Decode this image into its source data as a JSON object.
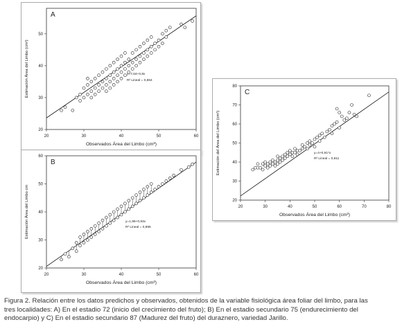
{
  "chart_data": [
    {
      "type": "scatter",
      "panel_label": "A",
      "xlabel": "Observados Área del Limbo (cm²)",
      "ylabel": "Estimación Área del Limbo (cm²)",
      "xlim": [
        20,
        60
      ],
      "ylim": [
        20,
        58
      ],
      "xticks": [
        20,
        30,
        40,
        50,
        60
      ],
      "yticks": [
        20,
        30,
        40,
        50
      ],
      "equation": "y=7,64+0,8x",
      "r2": "R² Lineal = 0,864",
      "fit": {
        "intercept": 7.64,
        "slope": 0.8
      },
      "points": [
        [
          24,
          26
        ],
        [
          25,
          27
        ],
        [
          27,
          26
        ],
        [
          28,
          30
        ],
        [
          29,
          29
        ],
        [
          29,
          31
        ],
        [
          30,
          30
        ],
        [
          30,
          33
        ],
        [
          31,
          31
        ],
        [
          31,
          34
        ],
        [
          31,
          36
        ],
        [
          32,
          30
        ],
        [
          32,
          32
        ],
        [
          32,
          35
        ],
        [
          33,
          31
        ],
        [
          33,
          33
        ],
        [
          33,
          36
        ],
        [
          34,
          32
        ],
        [
          34,
          34
        ],
        [
          34,
          37
        ],
        [
          35,
          33
        ],
        [
          35,
          35
        ],
        [
          35,
          38
        ],
        [
          36,
          32
        ],
        [
          36,
          34
        ],
        [
          36,
          36
        ],
        [
          36,
          39
        ],
        [
          37,
          33
        ],
        [
          37,
          35
        ],
        [
          37,
          37
        ],
        [
          37,
          40
        ],
        [
          38,
          34
        ],
        [
          38,
          36
        ],
        [
          38,
          38
        ],
        [
          38,
          41
        ],
        [
          39,
          35
        ],
        [
          39,
          37
        ],
        [
          39,
          39
        ],
        [
          39,
          42
        ],
        [
          40,
          36
        ],
        [
          40,
          38
        ],
        [
          40,
          40
        ],
        [
          40,
          43
        ],
        [
          41,
          37
        ],
        [
          41,
          39
        ],
        [
          41,
          41
        ],
        [
          41,
          44
        ],
        [
          42,
          38
        ],
        [
          42,
          40
        ],
        [
          42,
          42
        ],
        [
          43,
          39
        ],
        [
          43,
          41
        ],
        [
          43,
          44
        ],
        [
          44,
          40
        ],
        [
          44,
          42
        ],
        [
          44,
          45
        ],
        [
          45,
          41
        ],
        [
          45,
          43
        ],
        [
          45,
          46
        ],
        [
          46,
          42
        ],
        [
          46,
          44
        ],
        [
          46,
          47
        ],
        [
          47,
          43
        ],
        [
          47,
          45
        ],
        [
          47,
          48
        ],
        [
          48,
          44
        ],
        [
          48,
          46
        ],
        [
          48,
          49
        ],
        [
          49,
          45
        ],
        [
          49,
          47
        ],
        [
          50,
          46
        ],
        [
          50,
          48
        ],
        [
          51,
          47
        ],
        [
          51,
          50
        ],
        [
          52,
          49
        ],
        [
          52,
          51
        ],
        [
          53,
          52
        ],
        [
          56,
          53
        ],
        [
          57,
          52
        ],
        [
          59,
          54
        ]
      ]
    },
    {
      "type": "scatter",
      "panel_label": "B",
      "xlabel": "Observados Área del Limbo (cm²)",
      "ylabel": "Estimación Área del Limbo cm",
      "xlim": [
        20,
        60
      ],
      "ylim": [
        20,
        60
      ],
      "xticks": [
        20,
        30,
        40,
        50,
        60
      ],
      "yticks": [
        20,
        30,
        40,
        50,
        60
      ],
      "equation": "y=1,96+0,93x",
      "r2": "R² Lineal = 0,896",
      "fit": {
        "intercept": 1.96,
        "slope": 0.93
      },
      "points": [
        [
          24,
          23
        ],
        [
          25,
          25
        ],
        [
          26,
          24
        ],
        [
          27,
          27
        ],
        [
          28,
          26
        ],
        [
          28,
          29
        ],
        [
          29,
          28
        ],
        [
          29,
          31
        ],
        [
          30,
          29
        ],
        [
          30,
          32
        ],
        [
          31,
          30
        ],
        [
          31,
          33
        ],
        [
          32,
          31
        ],
        [
          32,
          34
        ],
        [
          33,
          32
        ],
        [
          33,
          35
        ],
        [
          34,
          33
        ],
        [
          34,
          36
        ],
        [
          35,
          34
        ],
        [
          35,
          37
        ],
        [
          36,
          35
        ],
        [
          36,
          38
        ],
        [
          37,
          36
        ],
        [
          37,
          39
        ],
        [
          38,
          37
        ],
        [
          38,
          40
        ],
        [
          39,
          38
        ],
        [
          39,
          41
        ],
        [
          40,
          39
        ],
        [
          40,
          42
        ],
        [
          41,
          40
        ],
        [
          41,
          43
        ],
        [
          42,
          41
        ],
        [
          42,
          44
        ],
        [
          43,
          42
        ],
        [
          43,
          45
        ],
        [
          44,
          43
        ],
        [
          44,
          46
        ],
        [
          45,
          44
        ],
        [
          45,
          47
        ],
        [
          46,
          45
        ],
        [
          46,
          48
        ],
        [
          47,
          46
        ],
        [
          47,
          49
        ],
        [
          48,
          47
        ],
        [
          48,
          50
        ],
        [
          49,
          48
        ],
        [
          50,
          49
        ],
        [
          51,
          50
        ],
        [
          52,
          51
        ],
        [
          53,
          52
        ],
        [
          54,
          53
        ],
        [
          56,
          55
        ],
        [
          58,
          56
        ],
        [
          59,
          57
        ]
      ]
    },
    {
      "type": "scatter",
      "panel_label": "C",
      "xlabel": "Observados Área del Limbo (cm²)",
      "ylabel": "Estimación del Área del Limbo (cm²)",
      "xlim": [
        20,
        80
      ],
      "ylim": [
        20,
        80
      ],
      "xticks": [
        20,
        30,
        40,
        50,
        60,
        70,
        80
      ],
      "yticks": [
        20,
        30,
        40,
        50,
        60,
        70,
        80
      ],
      "equation": "y=4+0,91*x",
      "r2": "R² Lineal = 0,911",
      "fit": {
        "intercept": 4,
        "slope": 0.91
      },
      "points": [
        [
          25,
          36
        ],
        [
          26,
          37
        ],
        [
          27,
          37
        ],
        [
          27,
          39
        ],
        [
          28,
          37
        ],
        [
          29,
          36
        ],
        [
          29,
          39
        ],
        [
          30,
          38
        ],
        [
          30,
          40
        ],
        [
          31,
          37
        ],
        [
          31,
          39
        ],
        [
          32,
          38
        ],
        [
          32,
          40
        ],
        [
          33,
          39
        ],
        [
          33,
          41
        ],
        [
          34,
          38
        ],
        [
          34,
          40
        ],
        [
          35,
          39
        ],
        [
          35,
          41
        ],
        [
          35,
          43
        ],
        [
          36,
          40
        ],
        [
          36,
          42
        ],
        [
          37,
          41
        ],
        [
          37,
          43
        ],
        [
          38,
          42
        ],
        [
          38,
          44
        ],
        [
          39,
          43
        ],
        [
          39,
          45
        ],
        [
          40,
          44
        ],
        [
          40,
          46
        ],
        [
          41,
          43
        ],
        [
          41,
          45
        ],
        [
          42,
          45
        ],
        [
          42,
          47
        ],
        [
          43,
          44
        ],
        [
          43,
          46
        ],
        [
          44,
          46
        ],
        [
          45,
          47
        ],
        [
          45,
          49
        ],
        [
          46,
          48
        ],
        [
          47,
          47
        ],
        [
          47,
          50
        ],
        [
          48,
          49
        ],
        [
          48,
          51
        ],
        [
          49,
          50
        ],
        [
          50,
          52
        ],
        [
          50,
          48
        ],
        [
          51,
          53
        ],
        [
          52,
          51
        ],
        [
          52,
          54
        ],
        [
          53,
          55
        ],
        [
          54,
          53
        ],
        [
          55,
          56
        ],
        [
          56,
          57
        ],
        [
          57,
          55
        ],
        [
          57,
          59
        ],
        [
          58,
          60
        ],
        [
          59,
          61
        ],
        [
          59,
          68
        ],
        [
          60,
          58
        ],
        [
          60,
          66
        ],
        [
          61,
          64
        ],
        [
          62,
          62
        ],
        [
          63,
          63
        ],
        [
          64,
          66
        ],
        [
          65,
          70
        ],
        [
          66,
          65
        ],
        [
          67,
          64
        ],
        [
          72,
          75
        ]
      ]
    }
  ],
  "caption": {
    "line1": "Figura 2. Relación entre los datos predichos y observados, obtenidos de la variable fisiológica área foliar del limbo, para las",
    "line2": "tres localidades: A) En el estadio 72 (inicio del crecimiento del fruto); B) En el estadio secundario 75 (endurecimiento del",
    "line3": "endocarpio) y C) En el estadio secundario 87 (Madurez del fruto) del duraznero, variedad Jarillo."
  }
}
